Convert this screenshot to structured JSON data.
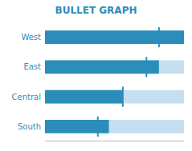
{
  "chart_data": {
    "type": "bullet",
    "title": "BULLET GRAPH",
    "orientation": "horizontal",
    "categories": [
      "West",
      "East",
      "Central",
      "South"
    ],
    "color": "#2b8eba",
    "series": [
      {
        "type": "bar",
        "color": "#c5dff0",
        "values": [
          1.05,
          1.05,
          1.05,
          1.05
        ]
      },
      {
        "type": "bar",
        "color": "#2b8eba",
        "values": [
          1.05,
          0.861,
          0.588,
          0.483
        ]
      },
      {
        "type": "target",
        "color": "#2b8eba",
        "values": [
          0.861,
          0.7665,
          0.588,
          0.399
        ]
      }
    ],
    "xlim": [
      0,
      1.05
    ],
    "tick_labels": false
  }
}
